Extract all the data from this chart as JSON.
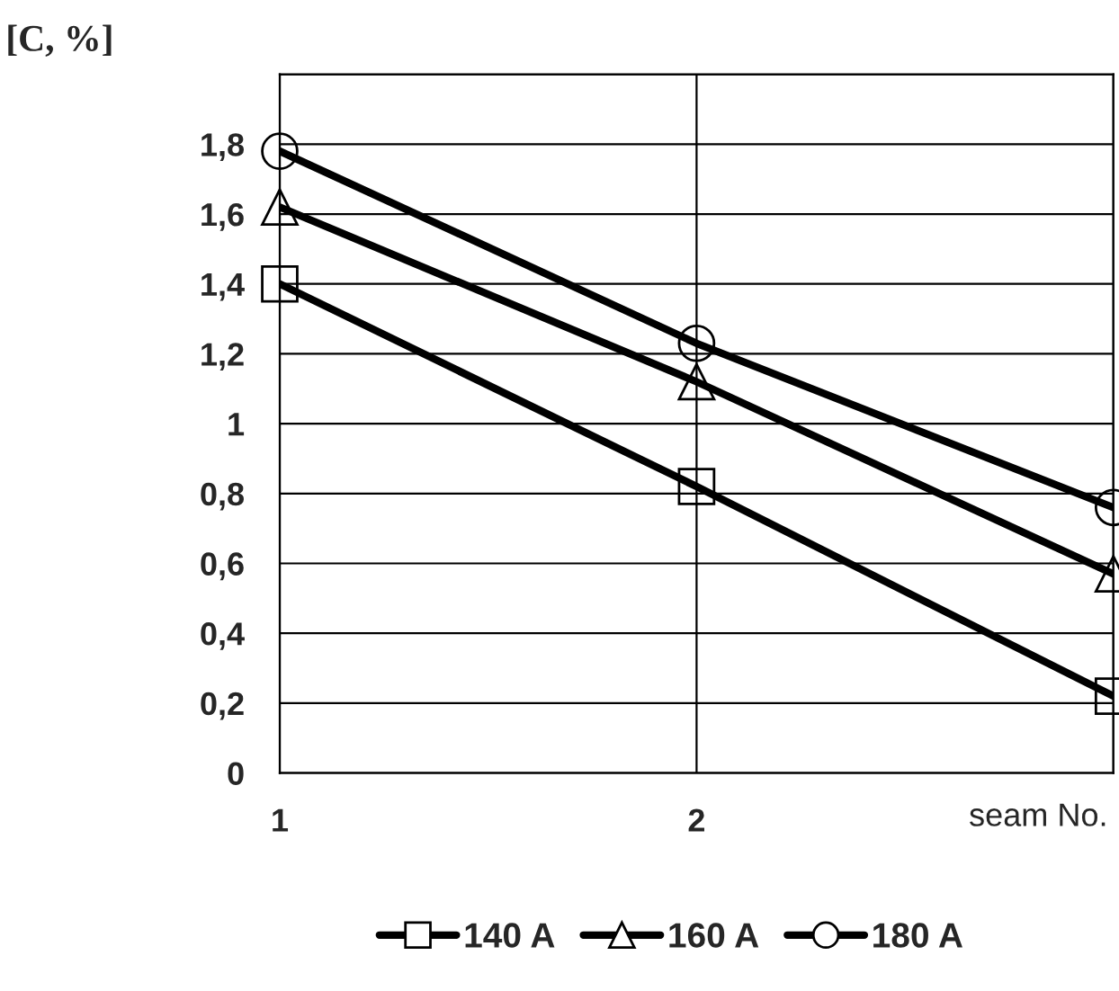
{
  "chart_data": {
    "type": "line",
    "ylabel": "[C, %]",
    "xlabel": "seam No.",
    "x": [
      1,
      2,
      3
    ],
    "series": [
      {
        "name": "140 A",
        "color": "#000000",
        "marker": "square",
        "values": [
          1.4,
          0.82,
          0.22
        ]
      },
      {
        "name": "160 A",
        "color": "#000000",
        "marker": "triangle",
        "values": [
          1.62,
          1.12,
          0.57
        ]
      },
      {
        "name": "180 A",
        "color": "#000000",
        "marker": "circle",
        "values": [
          1.78,
          1.23,
          0.76
        ]
      }
    ],
    "xlim": [
      1,
      3
    ],
    "xticks": [
      1,
      2,
      {
        "value": 3,
        "label": null
      }
    ],
    "ylim": [
      0,
      2
    ],
    "yticks": [
      0,
      {
        "value": 0.2,
        "label": "0,2"
      },
      {
        "value": 0.4,
        "label": "0,4"
      },
      {
        "value": 0.6,
        "label": "0,6"
      },
      {
        "value": 0.8,
        "label": "0,8"
      },
      1,
      {
        "value": 1.2,
        "label": "1,2"
      },
      {
        "value": 1.4,
        "label": "1,4"
      },
      {
        "value": 1.6,
        "label": "1,6"
      },
      {
        "value": 1.8,
        "label": "1,8"
      },
      {
        "value": 2,
        "label": null
      }
    ],
    "grid": true,
    "legend": "bottom",
    "line_style": "solid"
  }
}
